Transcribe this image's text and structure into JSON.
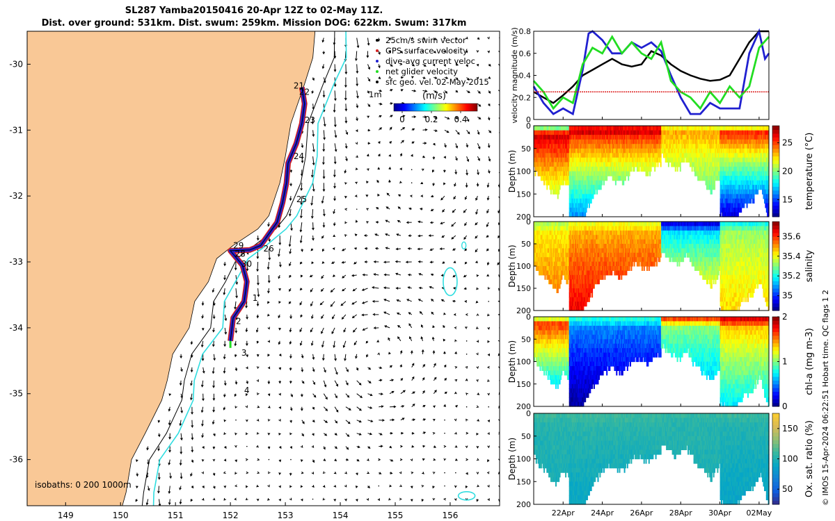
{
  "header": {
    "title": "SL287 Yamba20150416 20-Apr 12Z to 02-May 11Z.",
    "subtitle": "Dist. over ground: 531km. Dist. swum: 259km. Mission DOG: 622km. Swum: 317km"
  },
  "copyright": "© IMOS 15-Apr-2024 06:22:51 Hobart time. QC flags 1  2",
  "chart_data": [
    {
      "type": "scatter",
      "name": "map",
      "xlim": [
        148.3,
        156.9
      ],
      "ylim": [
        -36.7,
        -29.5
      ],
      "xticks": [
        "149",
        "150",
        "151",
        "152",
        "153",
        "154",
        "155",
        "156"
      ],
      "yticks": [
        "-30",
        "-31",
        "-32",
        "-33",
        "-34",
        "-35",
        "-36"
      ],
      "legend": {
        "placement": "top-right",
        "entries": [
          "25cm/s swim vector",
          "GPS surface velocity",
          "dive-avg current veloc",
          "net glider velocity",
          "sfc geo. vel. 02-May-2015"
        ],
        "colors": [
          "#000000",
          "#d42020",
          "#2020d0",
          "#22dd22",
          "#000000"
        ]
      },
      "vector_key_label": "1m",
      "colorbar": {
        "label": "(m/s)",
        "ticks": [
          "0",
          "0.2",
          "0.4"
        ]
      },
      "isobaths_label": "isobaths: 0   200  1000m",
      "day_labels": [
        {
          "text": "21",
          "lon": 153.15,
          "lat": -30.33
        },
        {
          "text": "22",
          "lon": 153.25,
          "lat": -30.42
        },
        {
          "text": "23",
          "lon": 153.35,
          "lat": -30.85
        },
        {
          "text": "24",
          "lon": 153.15,
          "lat": -31.4
        },
        {
          "text": "25",
          "lon": 153.2,
          "lat": -32.05
        },
        {
          "text": "26",
          "lon": 152.6,
          "lat": -32.8
        },
        {
          "text": "28",
          "lon": 152.08,
          "lat": -32.88
        },
        {
          "text": "29",
          "lon": 152.05,
          "lat": -32.75
        },
        {
          "text": "30",
          "lon": 152.2,
          "lat": -33.03
        },
        {
          "text": "1",
          "lon": 152.4,
          "lat": -33.55
        },
        {
          "text": "2",
          "lon": 152.1,
          "lat": -33.9
        },
        {
          "text": "3",
          "lon": 152.2,
          "lat": -34.38
        },
        {
          "text": "4",
          "lon": 152.25,
          "lat": -34.95
        }
      ],
      "track": [
        {
          "lon": 153.3,
          "lat": -30.35
        },
        {
          "lon": 153.35,
          "lat": -30.6
        },
        {
          "lon": 153.3,
          "lat": -30.9
        },
        {
          "lon": 153.2,
          "lat": -31.2
        },
        {
          "lon": 153.05,
          "lat": -31.5
        },
        {
          "lon": 153.02,
          "lat": -31.8
        },
        {
          "lon": 152.95,
          "lat": -32.1
        },
        {
          "lon": 152.85,
          "lat": -32.4
        },
        {
          "lon": 152.55,
          "lat": -32.75
        },
        {
          "lon": 152.35,
          "lat": -32.82
        },
        {
          "lon": 152.0,
          "lat": -32.83
        },
        {
          "lon": 152.22,
          "lat": -33.05
        },
        {
          "lon": 152.3,
          "lat": -33.3
        },
        {
          "lon": 152.25,
          "lat": -33.6
        },
        {
          "lon": 152.05,
          "lat": -33.85
        },
        {
          "lon": 152.0,
          "lat": -34.2
        }
      ]
    },
    {
      "type": "line",
      "name": "velocity",
      "ylabel": "velocity magnitude (m/s)",
      "ylim": [
        0,
        0.8
      ],
      "xlim": [
        0,
        12
      ],
      "yticks": [
        "0",
        "0.2",
        "0.4",
        "0.6",
        "0.8"
      ],
      "series": [
        {
          "color": "#000000",
          "x": [
            0,
            0.5,
            1,
            1.5,
            2,
            2.5,
            3,
            3.5,
            4,
            4.5,
            5,
            5.5,
            6,
            6.5,
            7,
            7.5,
            8,
            8.5,
            9,
            9.5,
            10,
            10.5,
            11,
            11.5,
            12
          ],
          "values": [
            0.25,
            0.2,
            0.15,
            0.22,
            0.3,
            0.4,
            0.45,
            0.5,
            0.55,
            0.5,
            0.48,
            0.5,
            0.62,
            0.58,
            0.5,
            0.44,
            0.4,
            0.37,
            0.35,
            0.36,
            0.4,
            0.55,
            0.7,
            0.8,
            0.8
          ]
        },
        {
          "color": "#2020d0",
          "x": [
            0,
            0.5,
            1,
            1.5,
            2,
            2.5,
            2.8,
            3,
            3.5,
            4,
            4.5,
            5,
            5.5,
            6,
            6.5,
            7,
            7.5,
            8,
            8.5,
            9,
            9.5,
            10,
            10.5,
            11,
            11.5,
            11.8,
            12
          ],
          "values": [
            0.3,
            0.15,
            0.05,
            0.1,
            0.05,
            0.45,
            0.78,
            0.8,
            0.72,
            0.6,
            0.6,
            0.7,
            0.65,
            0.7,
            0.62,
            0.4,
            0.2,
            0.05,
            0.05,
            0.15,
            0.1,
            0.1,
            0.1,
            0.6,
            0.8,
            0.55,
            0.6
          ]
        },
        {
          "color": "#22dd22",
          "x": [
            0,
            0.5,
            1,
            1.5,
            2,
            2.5,
            3,
            3.5,
            4,
            4.5,
            5,
            5.5,
            6,
            6.5,
            7,
            7.5,
            8,
            8.5,
            9,
            9.5,
            10,
            10.5,
            11,
            11.5,
            12
          ],
          "values": [
            0.35,
            0.25,
            0.1,
            0.2,
            0.15,
            0.5,
            0.65,
            0.6,
            0.75,
            0.6,
            0.7,
            0.6,
            0.55,
            0.7,
            0.35,
            0.25,
            0.2,
            0.1,
            0.25,
            0.15,
            0.3,
            0.2,
            0.3,
            0.65,
            0.75
          ]
        },
        {
          "color": "#dd2020",
          "x": [
            0,
            12
          ],
          "values": [
            0.25,
            0.25
          ]
        }
      ]
    },
    {
      "type": "heatmap",
      "name": "temperature",
      "ylabel": "Depth (m)",
      "cbar_label": "temperature (°C)",
      "ylim": [
        200,
        0
      ],
      "yticks": [
        "0",
        "50",
        "100",
        "150",
        "200"
      ],
      "cbar_ticks": [
        "15",
        "20",
        "25"
      ],
      "cbar_range": [
        12,
        28
      ],
      "sections": [
        {
          "x0": 0,
          "x1": 1.8,
          "max_depth": [
            90,
            110,
            120,
            140,
            150,
            120,
            130
          ],
          "top": 28,
          "bottom": 19,
          "surface": 20
        },
        {
          "x0": 1.8,
          "x1": 6.5,
          "max_depth": [
            200,
            200,
            140,
            110,
            120,
            90,
            100,
            80
          ],
          "top": 27,
          "bottom": 16,
          "surface": 26
        },
        {
          "x0": 6.5,
          "x1": 9.5,
          "max_depth": [
            60,
            80,
            90,
            70,
            100,
            120,
            140,
            110
          ],
          "top": 24,
          "bottom": 18,
          "surface": 22
        },
        {
          "x0": 9.5,
          "x1": 12,
          "max_depth": [
            190,
            200,
            200,
            170,
            160,
            130,
            200
          ],
          "top": 27,
          "bottom": 13,
          "surface": 22
        }
      ]
    },
    {
      "type": "heatmap",
      "name": "salinity",
      "ylabel": "Depth (m)",
      "cbar_label": "salinity",
      "ylim": [
        200,
        0
      ],
      "yticks": [
        "0",
        "50",
        "100",
        "150",
        "200"
      ],
      "cbar_ticks": [
        "35",
        "35.2",
        "35.4",
        "35.6"
      ],
      "cbar_range": [
        34.85,
        35.75
      ],
      "sections": [
        {
          "x0": 0,
          "x1": 1.8,
          "max_depth": [
            90,
            110,
            120,
            140,
            150,
            120,
            130
          ],
          "top": 35.4,
          "bottom": 35.55,
          "surface": 35.35
        },
        {
          "x0": 1.8,
          "x1": 6.5,
          "max_depth": [
            200,
            200,
            140,
            110,
            120,
            90,
            100,
            80
          ],
          "top": 35.45,
          "bottom": 35.65,
          "surface": 35.4
        },
        {
          "x0": 6.5,
          "x1": 9.5,
          "max_depth": [
            60,
            80,
            90,
            70,
            100,
            120,
            140,
            110
          ],
          "top": 35.1,
          "bottom": 35.5,
          "surface": 34.95
        },
        {
          "x0": 9.5,
          "x1": 12,
          "max_depth": [
            190,
            200,
            200,
            170,
            160,
            130,
            200
          ],
          "top": 35.3,
          "bottom": 35.45,
          "surface": 35.2
        }
      ]
    },
    {
      "type": "heatmap",
      "name": "chl-a",
      "ylabel": "Depth (m)",
      "cbar_label": "chl-a (mg m-3)",
      "ylim": [
        200,
        0
      ],
      "yticks": [
        "0",
        "50",
        "100",
        "150",
        "200"
      ],
      "cbar_ticks": [
        "0",
        "1",
        "2"
      ],
      "cbar_range": [
        0,
        2
      ],
      "sections": [
        {
          "x0": 0,
          "x1": 1.8,
          "max_depth": [
            90,
            110,
            120,
            140,
            150,
            120,
            130
          ],
          "top": 1.8,
          "bottom": 0.4,
          "surface": 1.2
        },
        {
          "x0": 1.8,
          "x1": 6.5,
          "max_depth": [
            200,
            200,
            140,
            110,
            120,
            90,
            100,
            80
          ],
          "top": 0.6,
          "bottom": 0.05,
          "surface": 0.8
        },
        {
          "x0": 6.5,
          "x1": 9.5,
          "max_depth": [
            60,
            80,
            90,
            70,
            100,
            120,
            140,
            110
          ],
          "top": 1.1,
          "bottom": 0.5,
          "surface": 1.6
        },
        {
          "x0": 9.5,
          "x1": 12,
          "max_depth": [
            190,
            200,
            200,
            170,
            160,
            130,
            200
          ],
          "top": 1.5,
          "bottom": 0.7,
          "surface": 1.8
        }
      ]
    },
    {
      "type": "heatmap",
      "name": "oxygen",
      "ylabel": "Depth (m)",
      "cbar_label": "Ox. sat. ratio (%)",
      "ylim": [
        200,
        0
      ],
      "yticks": [
        "0",
        "50",
        "100",
        "150",
        "200"
      ],
      "cbar_ticks": [
        "50",
        "100",
        "150"
      ],
      "cbar_range": [
        25,
        175
      ],
      "sections": [
        {
          "x0": 0,
          "x1": 1.8,
          "max_depth": [
            90,
            110,
            120,
            140,
            150,
            120,
            130
          ],
          "top": 105,
          "bottom": 95,
          "surface": 110
        },
        {
          "x0": 1.8,
          "x1": 6.5,
          "max_depth": [
            200,
            200,
            140,
            110,
            120,
            90,
            100,
            80
          ],
          "top": 108,
          "bottom": 90,
          "surface": 110
        },
        {
          "x0": 6.5,
          "x1": 9.5,
          "max_depth": [
            60,
            80,
            90,
            70,
            100,
            120,
            140,
            110
          ],
          "top": 105,
          "bottom": 98,
          "surface": 108
        },
        {
          "x0": 9.5,
          "x1": 12,
          "max_depth": [
            190,
            200,
            200,
            170,
            160,
            130,
            200
          ],
          "top": 105,
          "bottom": 88,
          "surface": 110
        }
      ]
    }
  ],
  "time_axis": {
    "xlim": [
      0,
      12
    ],
    "ticks": [
      {
        "x": 1.5,
        "label": "22Apr"
      },
      {
        "x": 3.5,
        "label": "24Apr"
      },
      {
        "x": 5.5,
        "label": "26Apr"
      },
      {
        "x": 7.5,
        "label": "28Apr"
      },
      {
        "x": 9.5,
        "label": "30Apr"
      },
      {
        "x": 11.5,
        "label": "02May"
      }
    ]
  }
}
